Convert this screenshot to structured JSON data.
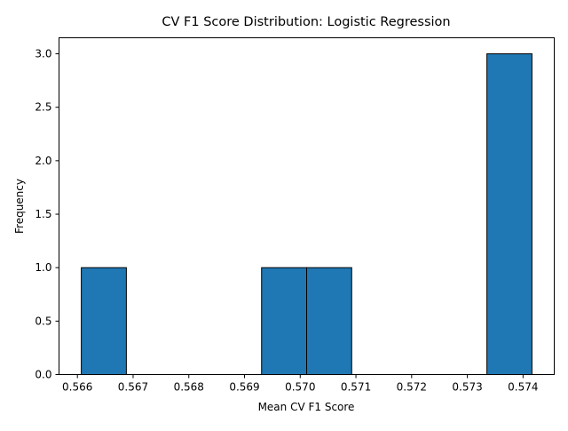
{
  "chart_data": {
    "type": "bar",
    "title": "CV F1 Score Distribution: Logistic Regression",
    "xlabel": "Mean CV F1 Score",
    "ylabel": "Frequency",
    "bin_edges": [
      0.56607,
      0.566879,
      0.567688,
      0.568497,
      0.569306,
      0.570115,
      0.570924,
      0.571733,
      0.572542,
      0.573351,
      0.57416
    ],
    "values": [
      1,
      0,
      0,
      0,
      1,
      1,
      0,
      0,
      0,
      3
    ],
    "xlim": [
      0.56567,
      0.57456
    ],
    "ylim": [
      0,
      3.15
    ],
    "xticks": [
      "0.566",
      "0.567",
      "0.568",
      "0.569",
      "0.570",
      "0.571",
      "0.572",
      "0.573",
      "0.574"
    ],
    "yticks": [
      "0.0",
      "0.5",
      "1.0",
      "1.5",
      "2.0",
      "2.5",
      "3.0"
    ],
    "bar_color": "#1f77b4",
    "edge_color": "#000000",
    "grid": false,
    "legend": "none"
  }
}
